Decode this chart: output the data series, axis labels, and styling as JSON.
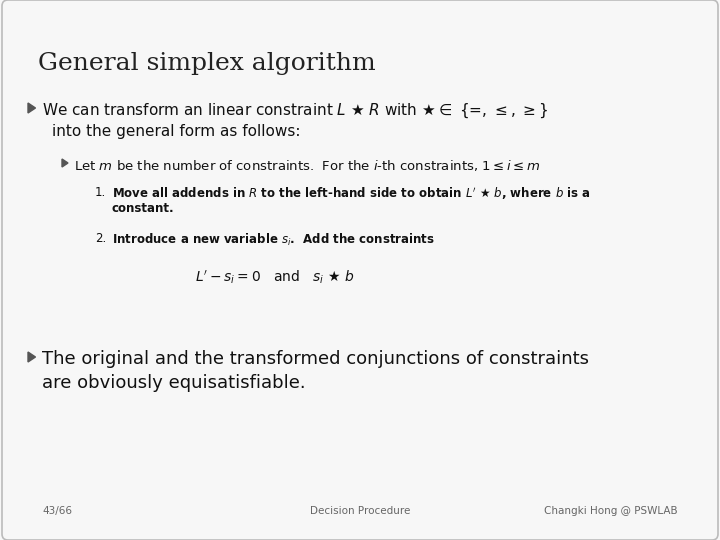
{
  "title": "General simplex algorithm",
  "background_color": "#f7f7f7",
  "border_color": "#bbbbbb",
  "title_color": "#222222",
  "text_color": "#111111",
  "gray_color": "#666666",
  "arrow_color": "#555555",
  "footer_left": "43/66",
  "footer_center": "Decision Procedure",
  "footer_right": "Changki Hong @ PSWLAB",
  "title_fontsize": 18,
  "body_fontsize": 11,
  "sub_fontsize": 9.5,
  "item_fontsize": 8.5,
  "formula_fontsize": 10,
  "footer_fontsize": 7.5
}
